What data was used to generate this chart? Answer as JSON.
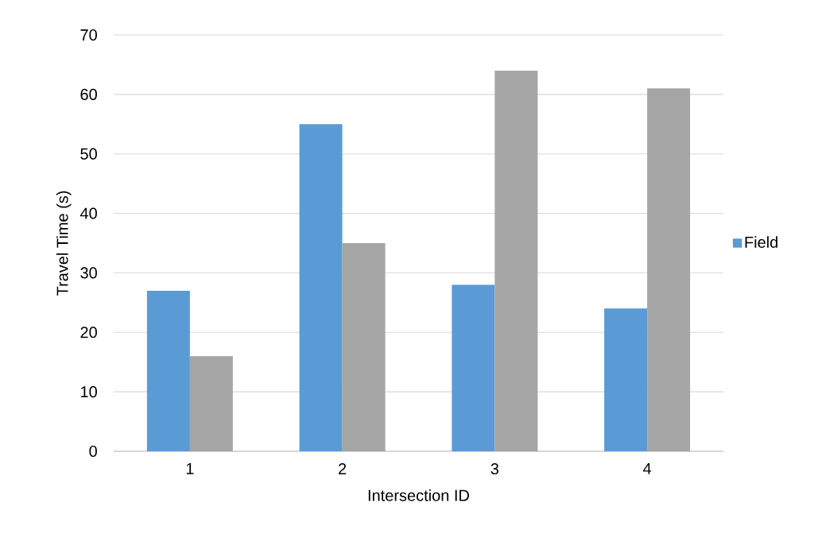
{
  "chart_data": {
    "type": "bar",
    "xlabel": "Intersection ID",
    "ylabel": "Travel Time (s)",
    "categories": [
      "1",
      "2",
      "3",
      "4"
    ],
    "series": [
      {
        "name": "Field",
        "color": "#5b9bd5",
        "values": [
          27,
          55,
          28,
          24
        ]
      },
      {
        "color": "#a5a5a5",
        "values": [
          16,
          35,
          64,
          61
        ]
      }
    ],
    "ylim": [
      0,
      70
    ],
    "yticks": [
      0,
      10,
      20,
      30,
      40,
      50,
      60,
      70
    ],
    "grid": "y",
    "legend": "right"
  }
}
